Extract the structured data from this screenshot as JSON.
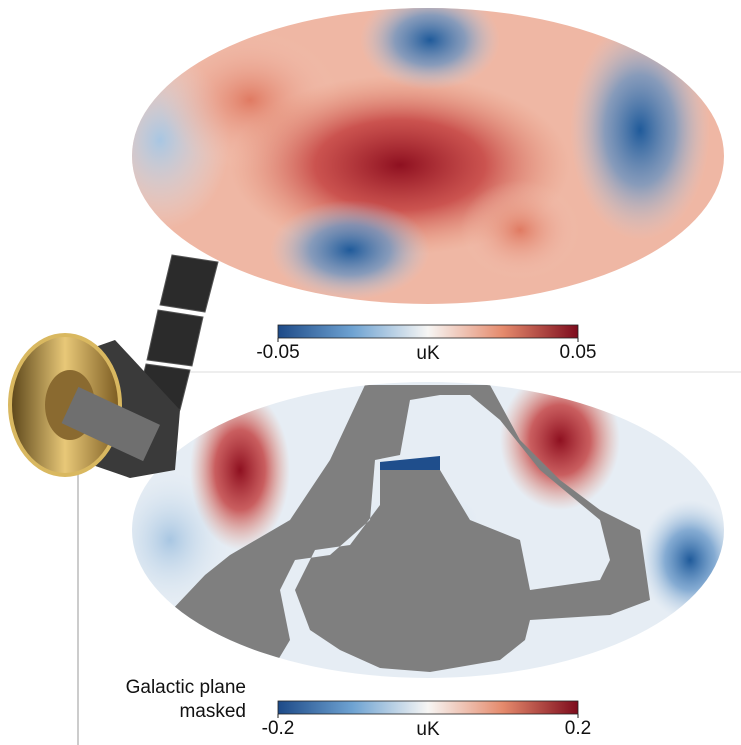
{
  "maps": [
    {
      "colorbar": {
        "label": "uK",
        "range": [
          -0.05,
          0.05
        ],
        "ticks": [
          -0.05,
          0.05
        ]
      }
    },
    {
      "annotation": [
        "Galactic plane",
        "masked"
      ],
      "colorbar": {
        "label": "uK",
        "range": [
          -0.2,
          0.2
        ],
        "ticks": [
          -0.2,
          0.2
        ]
      }
    }
  ]
}
